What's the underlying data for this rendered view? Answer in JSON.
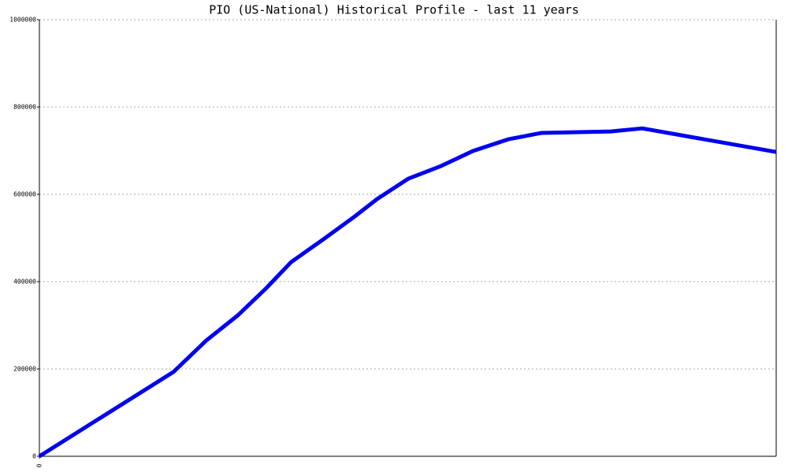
{
  "chart_data": {
    "type": "line",
    "title": "PIO (US-National) Historical Profile - last 11 years",
    "x": [
      0,
      2.0,
      2.49,
      2.96,
      3.38,
      3.76,
      4.24,
      4.71,
      5.04,
      5.51,
      6.0,
      6.47,
      7.0,
      7.49,
      8.53,
      9.0,
      11
    ],
    "series": [
      {
        "color": "#0000ee",
        "values": [
          0,
          193000,
          265000,
          322500,
          384000,
          445000,
          497000,
          549500,
          589000,
          636000,
          665000,
          699000,
          726000,
          740500,
          744000,
          751000,
          697000
        ]
      }
    ],
    "xlim": [
      0,
      11
    ],
    "xticks": [
      0
    ],
    "ylim": [
      0,
      1000000
    ],
    "yticks": [
      0,
      200000,
      400000,
      600000,
      800000,
      1000000
    ],
    "grid": true
  }
}
